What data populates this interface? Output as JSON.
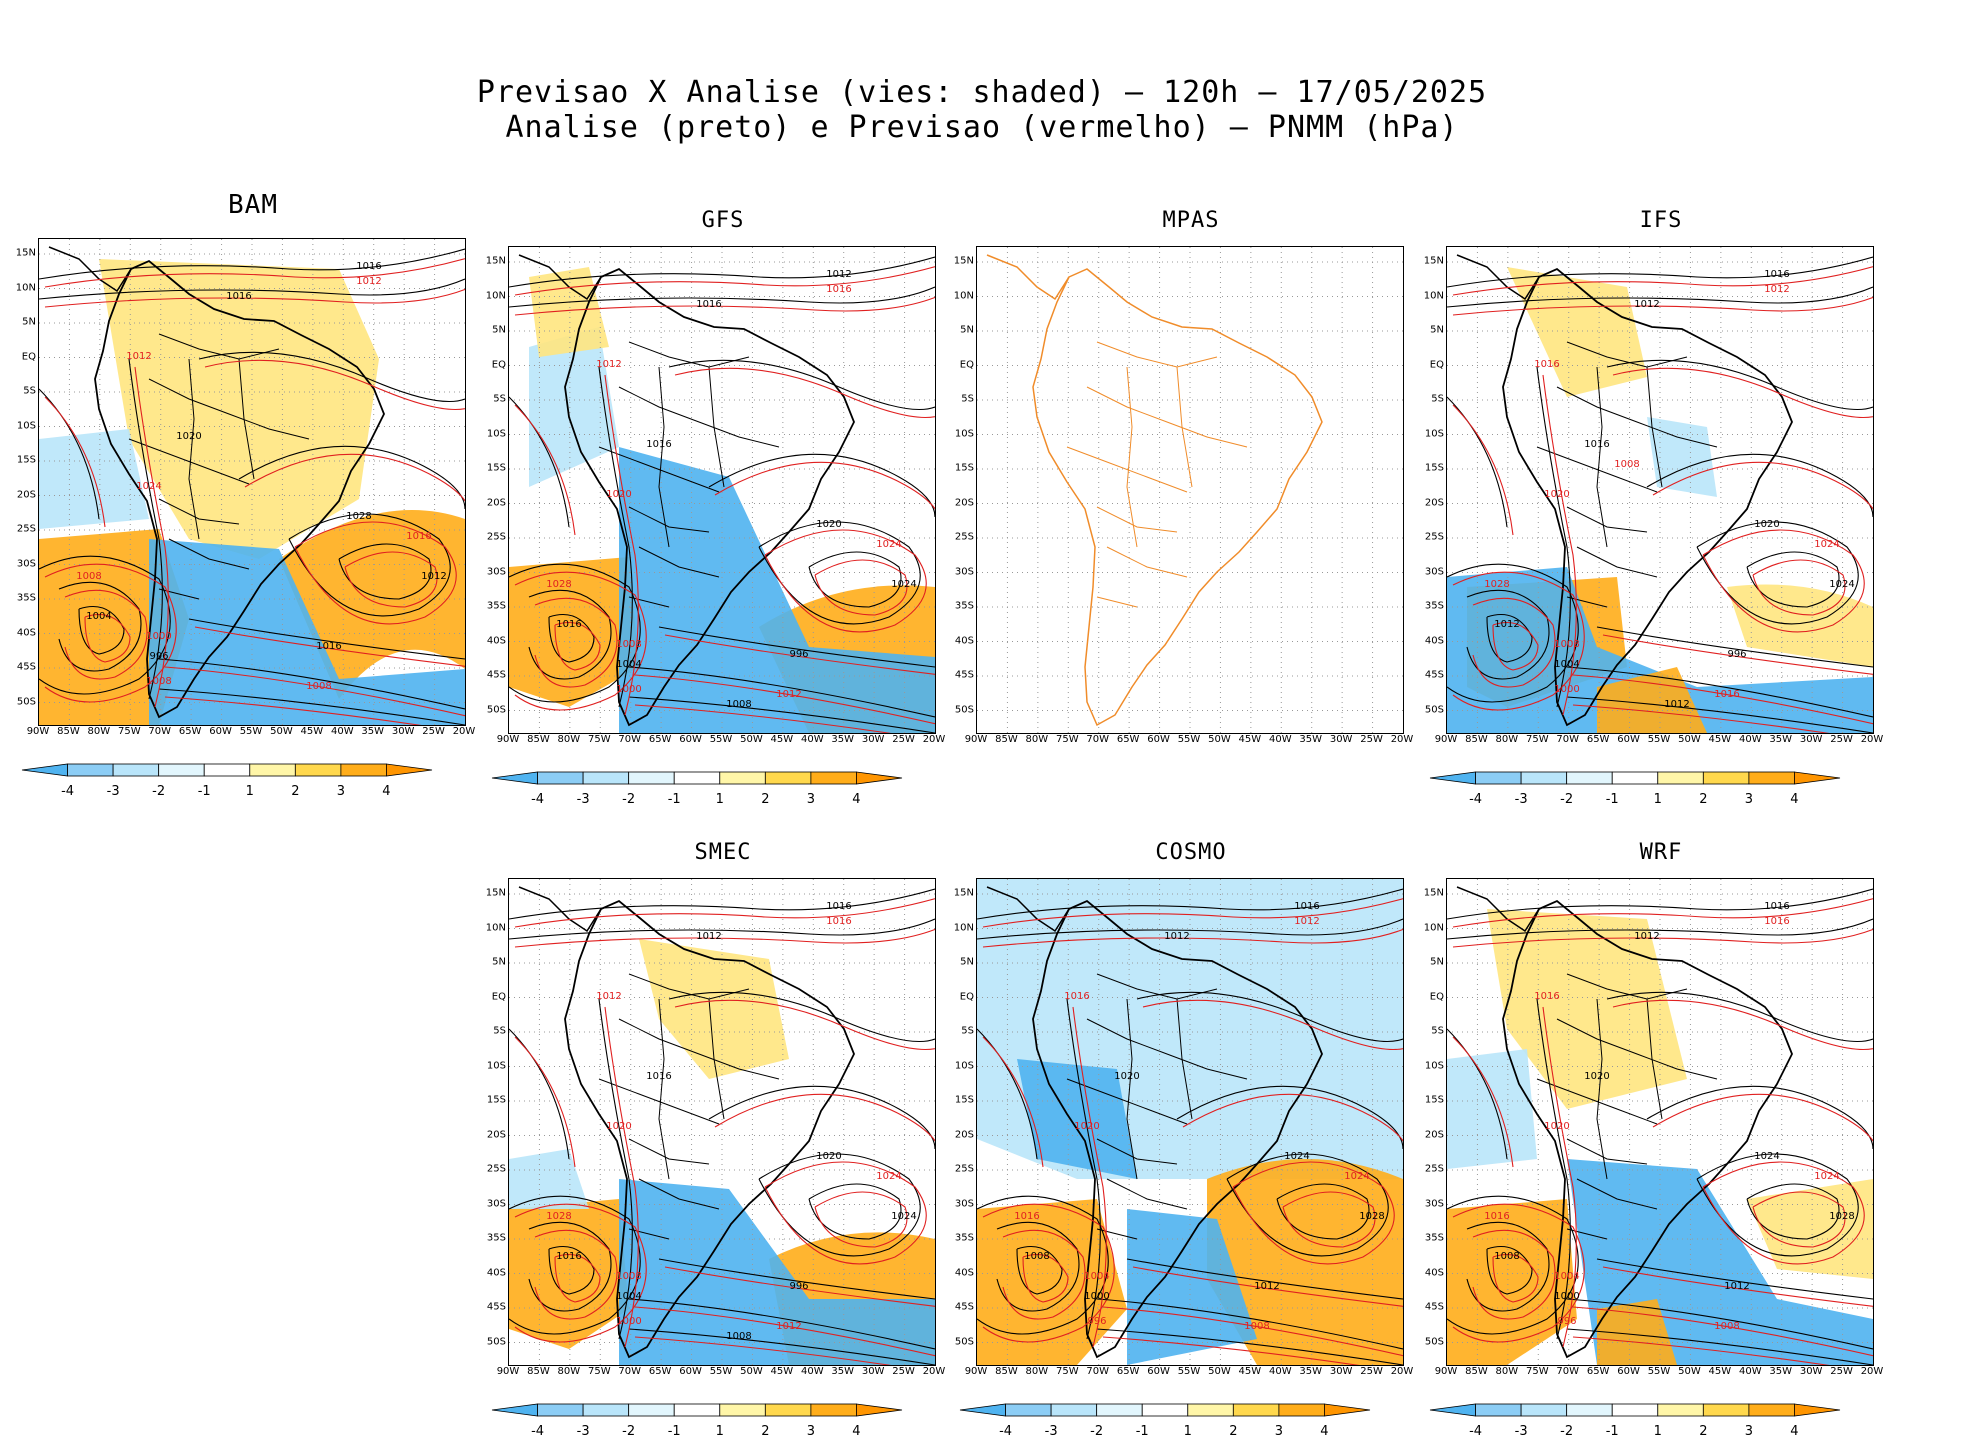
{
  "header": {
    "line1": "Previsao X Analise (vies: shaded) – 120h – 17/05/2025",
    "line2": "Analise (preto) e Previsao (vermelho) – PNMM (hPa)"
  },
  "lat_ticks": [
    "15N",
    "10N",
    "5N",
    "EQ",
    "5S",
    "10S",
    "15S",
    "20S",
    "25S",
    "30S",
    "35S",
    "40S",
    "45S",
    "50S"
  ],
  "lon_ticks": [
    "90W",
    "85W",
    "80W",
    "75W",
    "70W",
    "65W",
    "60W",
    "55W",
    "50W",
    "45W",
    "40W",
    "35W",
    "30W",
    "25W",
    "20W"
  ],
  "colorbar": {
    "labels": [
      "-4",
      "-3",
      "-2",
      "-1",
      "1",
      "2",
      "3",
      "4"
    ],
    "colors": [
      "#4fb3f0",
      "#8ccdf5",
      "#b9e5fa",
      "#e2f6fd",
      "#ffffff",
      "#fff6a8",
      "#ffd84d",
      "#ffad1a",
      "#ff9500"
    ]
  },
  "colors": {
    "analysis_line": "#000000",
    "forecast_line": "#e02020",
    "coastline": "#000000",
    "mpas_coastline": "#f08c2a",
    "warm_bias": "#ffad1a",
    "light_warm_bias": "#ffe680",
    "cold_bias": "#4fb3f0",
    "light_cold_bias": "#b9e5fa"
  },
  "panels": [
    {
      "id": "bam",
      "title": "BAM",
      "isobars": [
        "1016",
        "1012",
        "1016",
        "1012",
        "1020",
        "1024",
        "1028",
        "1016",
        "1012",
        "1008",
        "1004",
        "1000",
        "996",
        "1008",
        "1016",
        "1008"
      ]
    },
    {
      "id": "gfs",
      "title": "GFS",
      "isobars": [
        "1012",
        "1016",
        "1016",
        "1012",
        "1016",
        "1020",
        "1020",
        "1024",
        "1024",
        "1028",
        "1016",
        "1008",
        "1004",
        "1000",
        "996",
        "1012",
        "1008"
      ]
    },
    {
      "id": "mpas",
      "title": "MPAS",
      "isobars": []
    },
    {
      "id": "ifs",
      "title": "IFS",
      "isobars": [
        "1016",
        "1012",
        "1012",
        "1016",
        "1016",
        "1020",
        "1020",
        "1024",
        "1024",
        "1028",
        "1012",
        "1008",
        "1004",
        "1000",
        "996",
        "1016",
        "1012",
        "1008"
      ]
    },
    {
      "id": "smec",
      "title": "SMEC",
      "isobars": [
        "1016",
        "1016",
        "1012",
        "1012",
        "1016",
        "1020",
        "1020",
        "1024",
        "1024",
        "1028",
        "1016",
        "1008",
        "1004",
        "1000",
        "996",
        "1012",
        "1008"
      ]
    },
    {
      "id": "cosmo",
      "title": "COSMO",
      "isobars": [
        "1016",
        "1012",
        "1012",
        "1016",
        "1020",
        "1020",
        "1024",
        "1024",
        "1028",
        "1016",
        "1008",
        "1004",
        "1000",
        "996",
        "1012",
        "1008"
      ]
    },
    {
      "id": "wrf",
      "title": "WRF",
      "isobars": [
        "1016",
        "1016",
        "1012",
        "1016",
        "1020",
        "1020",
        "1024",
        "1024",
        "1028",
        "1016",
        "1008",
        "1004",
        "1000",
        "996",
        "1012",
        "1008"
      ]
    }
  ]
}
